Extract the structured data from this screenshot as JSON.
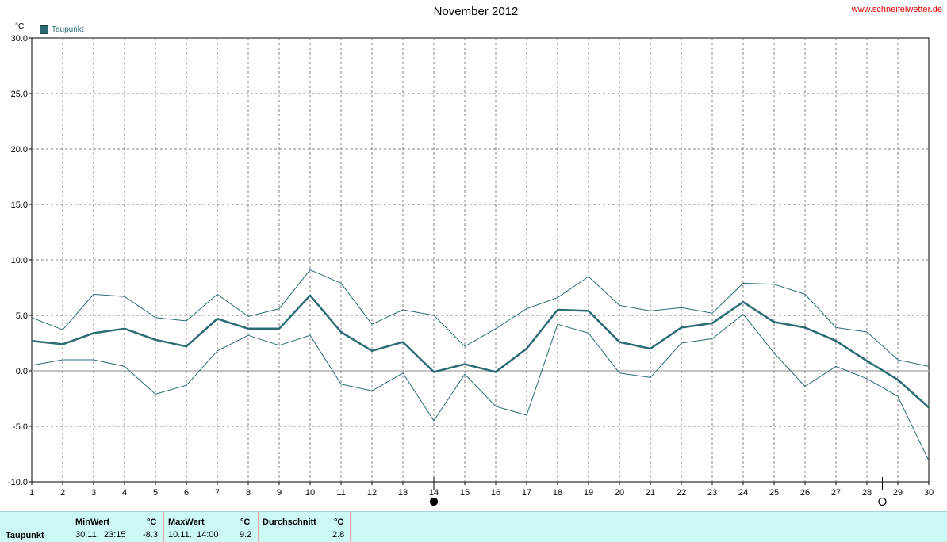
{
  "header": {
    "title": "November 2012",
    "site": "www.schneifelwetter.de",
    "unit": "°C",
    "legend_label": "Taupunkt"
  },
  "colors": {
    "series": "#2a6b74",
    "grid": "#808080",
    "zero": "#b0b0b0",
    "table_bg": "#ccf8f6",
    "site": "#e00000"
  },
  "chart_data": {
    "type": "line",
    "title": "November 2012",
    "ylabel": "°C",
    "ylim": [
      -10,
      30
    ],
    "xlim": [
      1,
      30
    ],
    "yticks": [
      "30.0",
      "25.0",
      "20.0",
      "15.0",
      "10.0",
      "5.0",
      "0.0",
      "-5.0",
      "-10.0"
    ],
    "xticks": [
      "1",
      "2",
      "3",
      "4",
      "5",
      "6",
      "7",
      "8",
      "9",
      "10",
      "11",
      "12",
      "13",
      "14",
      "15",
      "16",
      "17",
      "18",
      "19",
      "20",
      "21",
      "22",
      "23",
      "24",
      "25",
      "26",
      "27",
      "28",
      "29",
      "30"
    ],
    "x": [
      1,
      2,
      3,
      4,
      5,
      6,
      7,
      8,
      9,
      10,
      11,
      12,
      13,
      14,
      15,
      16,
      17,
      18,
      19,
      20,
      21,
      22,
      23,
      24,
      25,
      26,
      27,
      28,
      29,
      30
    ],
    "series": [
      {
        "name": "Taupunkt",
        "role": "avg",
        "values": [
          2.7,
          2.4,
          3.4,
          3.8,
          2.8,
          2.2,
          4.7,
          3.8,
          3.8,
          6.8,
          3.5,
          1.8,
          2.6,
          -0.1,
          0.6,
          -0.1,
          2.0,
          5.5,
          5.4,
          2.6,
          2.0,
          3.9,
          4.3,
          6.2,
          4.4,
          3.9,
          2.7,
          0.9,
          -0.8,
          -3.3
        ]
      },
      {
        "role": "max",
        "values": [
          4.8,
          3.7,
          6.9,
          6.7,
          4.8,
          4.5,
          6.9,
          4.9,
          5.6,
          9.1,
          7.9,
          4.2,
          5.5,
          5.0,
          2.2,
          3.8,
          5.6,
          6.6,
          8.5,
          5.9,
          5.4,
          5.7,
          5.2,
          7.9,
          7.8,
          6.9,
          3.9,
          3.5,
          1.0,
          0.4
        ]
      },
      {
        "role": "min",
        "values": [
          0.5,
          1.0,
          1.0,
          0.4,
          -2.1,
          -1.3,
          1.8,
          3.2,
          2.3,
          3.2,
          -1.2,
          -1.8,
          -0.2,
          -4.5,
          -0.3,
          -3.2,
          -4.0,
          4.2,
          3.4,
          -0.2,
          -0.6,
          2.5,
          2.9,
          5.1,
          1.6,
          -1.4,
          0.4,
          -0.7,
          -2.3,
          -8.1
        ]
      }
    ],
    "markers": [
      {
        "day": 14,
        "symbol": "filled-circle"
      },
      {
        "day": 28.5,
        "symbol": "open-circle"
      }
    ],
    "grid": true
  },
  "stats": {
    "row_label": "Taupunkt",
    "min": {
      "header": "MinWert",
      "unit": "°C",
      "date": "30.11.",
      "time": "23:15",
      "value": "-8.3"
    },
    "max": {
      "header": "MaxWert",
      "unit": "°C",
      "date": "10.11.",
      "time": "14:00",
      "value": "9.2"
    },
    "avg": {
      "header": "Durchschnitt",
      "unit": "°C",
      "value": "2.8"
    }
  }
}
